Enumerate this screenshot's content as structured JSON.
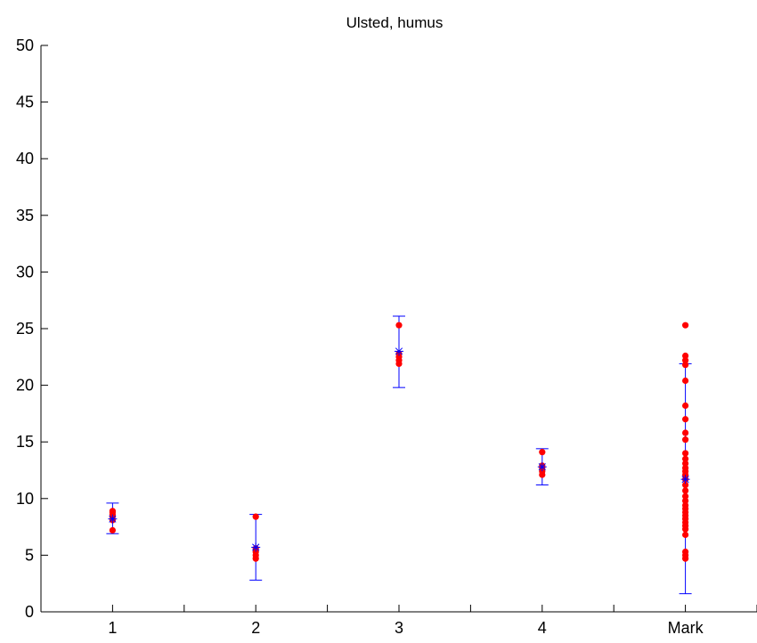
{
  "chart_data": {
    "type": "scatter",
    "title": "Ulsted, humus",
    "xlabel": "",
    "ylabel": "",
    "categories": [
      "1",
      "2",
      "3",
      "4",
      "Mark"
    ],
    "x_ticks": [
      0.5,
      1,
      1.5,
      2,
      2.5,
      3,
      3.5,
      4,
      4.5,
      5,
      5.5
    ],
    "xlim": [
      0.5,
      5.5
    ],
    "ylim": [
      0,
      50
    ],
    "y_ticks": [
      0,
      5,
      10,
      15,
      20,
      25,
      30,
      35,
      40,
      45,
      50
    ],
    "grid": false,
    "colors": {
      "points": "#ff0000",
      "mean_errorbar": "#0000ff",
      "axes": "#000000"
    },
    "groups": [
      {
        "category": "1",
        "mean": 8.2,
        "lower": 6.9,
        "upper": 9.6,
        "points": [
          7.2,
          8.1,
          8.4,
          8.6,
          8.8,
          8.9
        ]
      },
      {
        "category": "2",
        "mean": 5.7,
        "lower": 2.8,
        "upper": 8.6,
        "points": [
          4.7,
          5.0,
          5.3,
          5.6,
          8.4
        ]
      },
      {
        "category": "3",
        "mean": 23.0,
        "lower": 19.8,
        "upper": 26.1,
        "points": [
          21.9,
          22.2,
          22.5,
          22.8,
          25.3
        ]
      },
      {
        "category": "4",
        "mean": 12.8,
        "lower": 11.2,
        "upper": 14.4,
        "points": [
          12.1,
          12.4,
          12.7,
          12.9,
          14.1
        ]
      },
      {
        "category": "Mark",
        "mean": 11.7,
        "lower": 1.6,
        "upper": 21.9,
        "points": [
          4.7,
          5.0,
          5.3,
          6.8,
          7.3,
          7.6,
          7.9,
          8.2,
          8.5,
          8.8,
          9.1,
          9.4,
          9.8,
          10.2,
          10.7,
          11.2,
          11.7,
          12.1,
          12.4,
          12.7,
          13.1,
          13.5,
          14.0,
          15.2,
          15.8,
          17.0,
          18.2,
          20.4,
          21.8,
          22.2,
          22.6,
          25.3
        ]
      }
    ]
  }
}
